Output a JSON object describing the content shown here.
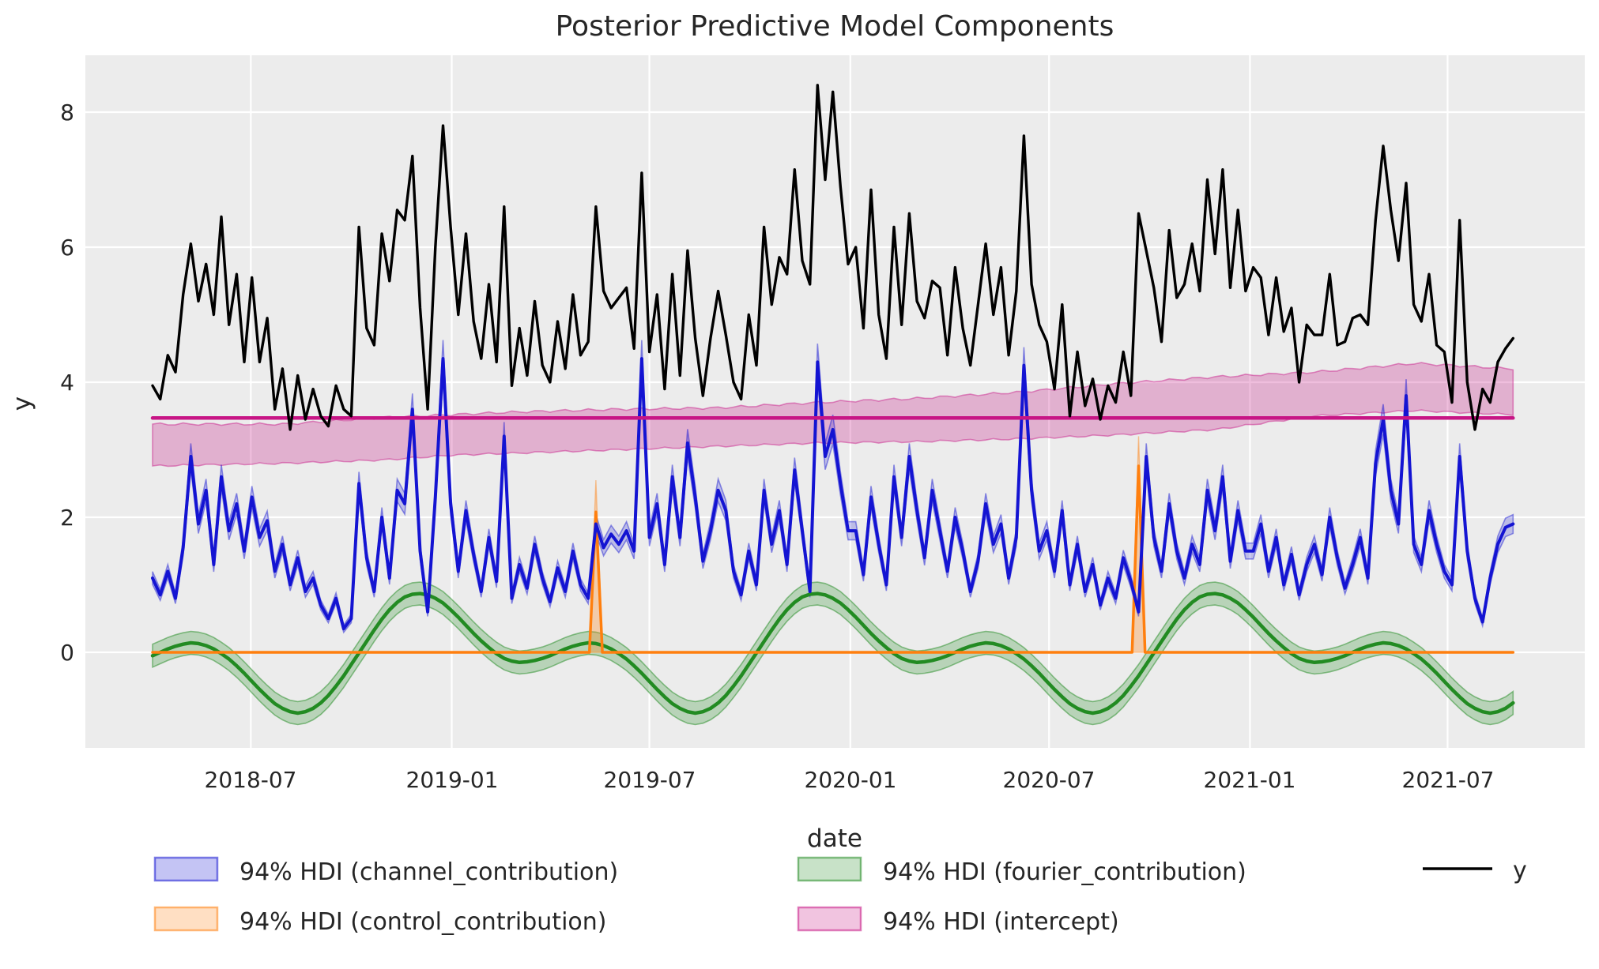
{
  "title": "Posterior Predictive Model Components",
  "axes": {
    "xlabel": "date",
    "ylabel": "y",
    "x_ticks": [
      {
        "label": "2018-07",
        "day": 90
      },
      {
        "label": "2019-01",
        "day": 274
      },
      {
        "label": "2019-07",
        "day": 455
      },
      {
        "label": "2020-01",
        "day": 639
      },
      {
        "label": "2020-07",
        "day": 821
      },
      {
        "label": "2021-01",
        "day": 1005
      },
      {
        "label": "2021-07",
        "day": 1186
      }
    ],
    "y_ticks": [
      0,
      2,
      4,
      6,
      8
    ],
    "grid": "on",
    "plot_background": "#ececec",
    "grid_color": "#ffffff"
  },
  "legend": {
    "position": "below-axes",
    "items": [
      {
        "label": "94% HDI (channel_contribution)",
        "color_key": "channel",
        "swatch": "patch"
      },
      {
        "label": "94% HDI (control_contribution)",
        "color_key": "control",
        "swatch": "patch"
      },
      {
        "label": "94% HDI (fourier_contribution)",
        "color_key": "fourier",
        "swatch": "patch"
      },
      {
        "label": "94% HDI (intercept)",
        "color_key": "intercept",
        "swatch": "patch"
      },
      {
        "label": "y",
        "color_key": "y",
        "swatch": "line"
      }
    ]
  },
  "colors": {
    "y": "#000000",
    "channel": "#1414d2",
    "control": "#ff7f0e",
    "fourier": "#228b22",
    "intercept": "#c71585",
    "text": "#262626"
  },
  "chart_data": {
    "type": "line",
    "title": "Posterior Predictive Model Components",
    "xlabel": "date",
    "ylabel": "y",
    "x_start_date": "2018-04-02",
    "x_step_days": 7,
    "n_points": 179,
    "x_range": [
      "2018-04-02",
      "2021-08-30"
    ],
    "ylim": [
      -1.42,
      8.78
    ],
    "legend_position": "lower center outside",
    "series": {
      "y": {
        "name": "y",
        "style": "solid black line",
        "values": [
          3.95,
          3.75,
          4.4,
          4.15,
          5.3,
          6.05,
          5.2,
          5.75,
          5.0,
          6.45,
          4.85,
          5.6,
          4.3,
          5.55,
          4.3,
          4.95,
          3.6,
          4.2,
          3.3,
          4.1,
          3.45,
          3.9,
          3.5,
          3.35,
          3.95,
          3.6,
          3.5,
          6.3,
          4.8,
          4.55,
          6.2,
          5.5,
          6.55,
          6.4,
          7.35,
          5.1,
          3.6,
          6.0,
          7.8,
          6.3,
          5.0,
          6.2,
          4.9,
          4.35,
          5.45,
          4.3,
          6.6,
          3.95,
          4.8,
          4.1,
          5.2,
          4.25,
          4.0,
          4.9,
          4.2,
          5.3,
          4.4,
          4.6,
          6.6,
          5.35,
          5.1,
          5.25,
          5.4,
          4.5,
          7.1,
          4.45,
          5.3,
          3.9,
          5.6,
          4.1,
          5.95,
          4.65,
          3.8,
          4.65,
          5.35,
          4.7,
          4.0,
          3.75,
          5.0,
          4.25,
          6.3,
          5.15,
          5.85,
          5.6,
          7.15,
          5.8,
          5.45,
          8.4,
          7.0,
          8.3,
          6.9,
          5.75,
          6.0,
          4.8,
          6.85,
          5.0,
          4.35,
          6.3,
          4.85,
          6.5,
          5.2,
          4.95,
          5.5,
          5.4,
          4.4,
          5.7,
          4.8,
          4.25,
          5.15,
          6.05,
          5.0,
          5.7,
          4.4,
          5.35,
          7.65,
          5.45,
          4.85,
          4.6,
          3.9,
          5.15,
          3.5,
          4.45,
          3.65,
          4.05,
          3.45,
          3.95,
          3.7,
          4.45,
          3.8,
          6.5,
          5.95,
          5.4,
          4.6,
          6.25,
          5.25,
          5.45,
          6.05,
          5.35,
          7.0,
          5.9,
          7.15,
          5.4,
          6.55,
          5.35,
          5.7,
          5.55,
          4.7,
          5.55,
          4.75,
          5.1,
          4.0,
          4.85,
          4.7,
          4.7,
          5.6,
          4.55,
          4.6,
          4.95,
          5.0,
          4.85,
          6.4,
          7.5,
          6.55,
          5.8,
          6.95,
          5.15,
          4.9,
          5.6,
          4.55,
          4.45,
          3.7,
          6.4,
          4.0,
          3.3,
          3.9,
          3.7,
          4.3,
          4.5,
          4.65
        ]
      },
      "channel_contribution": {
        "name": "channel_contribution",
        "hdi_label": "94% HDI (channel_contribution)",
        "hdi_probability": 0.94,
        "mean": [
          1.1,
          0.85,
          1.2,
          0.8,
          1.55,
          2.9,
          1.9,
          2.4,
          1.3,
          2.6,
          1.8,
          2.2,
          1.5,
          2.3,
          1.7,
          1.95,
          1.2,
          1.6,
          1.0,
          1.4,
          0.9,
          1.1,
          0.7,
          0.5,
          0.8,
          0.35,
          0.5,
          2.5,
          1.4,
          0.9,
          2.0,
          1.1,
          2.4,
          2.2,
          3.6,
          1.5,
          0.6,
          2.3,
          4.35,
          2.2,
          1.2,
          2.1,
          1.45,
          0.9,
          1.7,
          1.05,
          3.2,
          0.8,
          1.3,
          0.95,
          1.6,
          1.1,
          0.75,
          1.25,
          0.9,
          1.5,
          1.0,
          0.8,
          1.9,
          1.55,
          1.75,
          1.6,
          1.8,
          1.5,
          4.35,
          1.7,
          2.2,
          1.3,
          2.6,
          1.7,
          3.1,
          2.3,
          1.35,
          1.8,
          2.4,
          2.1,
          1.2,
          0.85,
          1.5,
          1.0,
          2.4,
          1.6,
          2.1,
          1.3,
          2.7,
          1.8,
          0.9,
          4.3,
          2.9,
          3.3,
          2.5,
          1.8,
          1.8,
          1.15,
          2.3,
          1.6,
          1.0,
          2.6,
          1.7,
          2.9,
          2.1,
          1.4,
          2.4,
          1.8,
          1.2,
          2.0,
          1.5,
          0.9,
          1.35,
          2.2,
          1.6,
          1.9,
          1.1,
          1.7,
          4.25,
          2.4,
          1.5,
          1.8,
          1.2,
          2.1,
          1.0,
          1.6,
          0.9,
          1.3,
          0.7,
          1.1,
          0.8,
          1.4,
          1.05,
          0.6,
          2.9,
          1.7,
          1.2,
          2.2,
          1.5,
          1.1,
          1.6,
          1.3,
          2.4,
          1.8,
          2.6,
          1.35,
          2.1,
          1.5,
          1.5,
          1.9,
          1.2,
          1.7,
          1.0,
          1.45,
          0.85,
          1.3,
          1.6,
          1.15,
          2.0,
          1.4,
          0.95,
          1.3,
          1.7,
          1.1,
          2.8,
          3.45,
          2.4,
          1.9,
          3.8,
          1.6,
          1.3,
          2.1,
          1.6,
          1.2,
          1.0,
          2.9,
          1.5,
          0.8,
          0.45,
          1.1,
          1.6,
          1.85,
          1.9
        ],
        "hdi_halfwidth_base": 0.035,
        "hdi_halfwidth_frac": 0.055
      },
      "control_contribution": {
        "name": "control_contribution",
        "hdi_label": "94% HDI (control_contribution)",
        "hdi_probability": 0.94,
        "baseline": 0,
        "spikes": [
          {
            "week_index": 58,
            "date": "2019-05-13",
            "mean_peak": 2.08,
            "hdi_hi_peak": 2.55
          },
          {
            "week_index": 129,
            "date": "2020-09-21",
            "mean_peak": 2.76,
            "hdi_hi_peak": 3.2
          }
        ]
      },
      "fourier_contribution": {
        "name": "fourier_contribution",
        "hdi_label": "94% HDI (fourier_contribution)",
        "hdi_probability": 0.94,
        "period_weeks": 52,
        "annual_weekly_profile": [
          -0.05,
          0.0,
          0.05,
          0.09,
          0.12,
          0.14,
          0.13,
          0.1,
          0.05,
          -0.02,
          -0.1,
          -0.2,
          -0.31,
          -0.43,
          -0.55,
          -0.66,
          -0.76,
          -0.83,
          -0.88,
          -0.9,
          -0.88,
          -0.83,
          -0.75,
          -0.64,
          -0.5,
          -0.35,
          -0.18,
          -0.01,
          0.16,
          0.33,
          0.49,
          0.63,
          0.74,
          0.82,
          0.86,
          0.87,
          0.85,
          0.8,
          0.73,
          0.63,
          0.52,
          0.4,
          0.28,
          0.17,
          0.07,
          -0.02,
          -0.09,
          -0.13,
          -0.15,
          -0.14,
          -0.12,
          -0.09
        ],
        "hdi_halfwidth": 0.17
      },
      "intercept": {
        "name": "intercept",
        "hdi_label": "94% HDI (intercept)",
        "hdi_probability": 0.94,
        "mean": 3.47,
        "hdi_anchors": [
          {
            "day": 0,
            "lo": 2.76,
            "hi": 3.38
          },
          {
            "day": 121,
            "lo": 2.8,
            "hi": 3.38
          },
          {
            "day": 213,
            "lo": 2.85,
            "hi": 3.48
          },
          {
            "day": 274,
            "lo": 2.92,
            "hi": 3.52
          },
          {
            "day": 333,
            "lo": 2.95,
            "hi": 3.56
          },
          {
            "day": 425,
            "lo": 3.0,
            "hi": 3.6
          },
          {
            "day": 517,
            "lo": 3.05,
            "hi": 3.62
          },
          {
            "day": 608,
            "lo": 3.1,
            "hi": 3.7
          },
          {
            "day": 699,
            "lo": 3.12,
            "hi": 3.76
          },
          {
            "day": 791,
            "lo": 3.16,
            "hi": 3.85
          },
          {
            "day": 883,
            "lo": 3.22,
            "hi": 3.98
          },
          {
            "day": 974,
            "lo": 3.3,
            "hi": 4.08
          },
          {
            "day": 1064,
            "lo": 3.5,
            "hi": 4.15
          },
          {
            "day": 1156,
            "lo": 3.58,
            "hi": 4.28
          },
          {
            "day": 1246,
            "lo": 3.52,
            "hi": 4.2
          }
        ]
      }
    }
  }
}
